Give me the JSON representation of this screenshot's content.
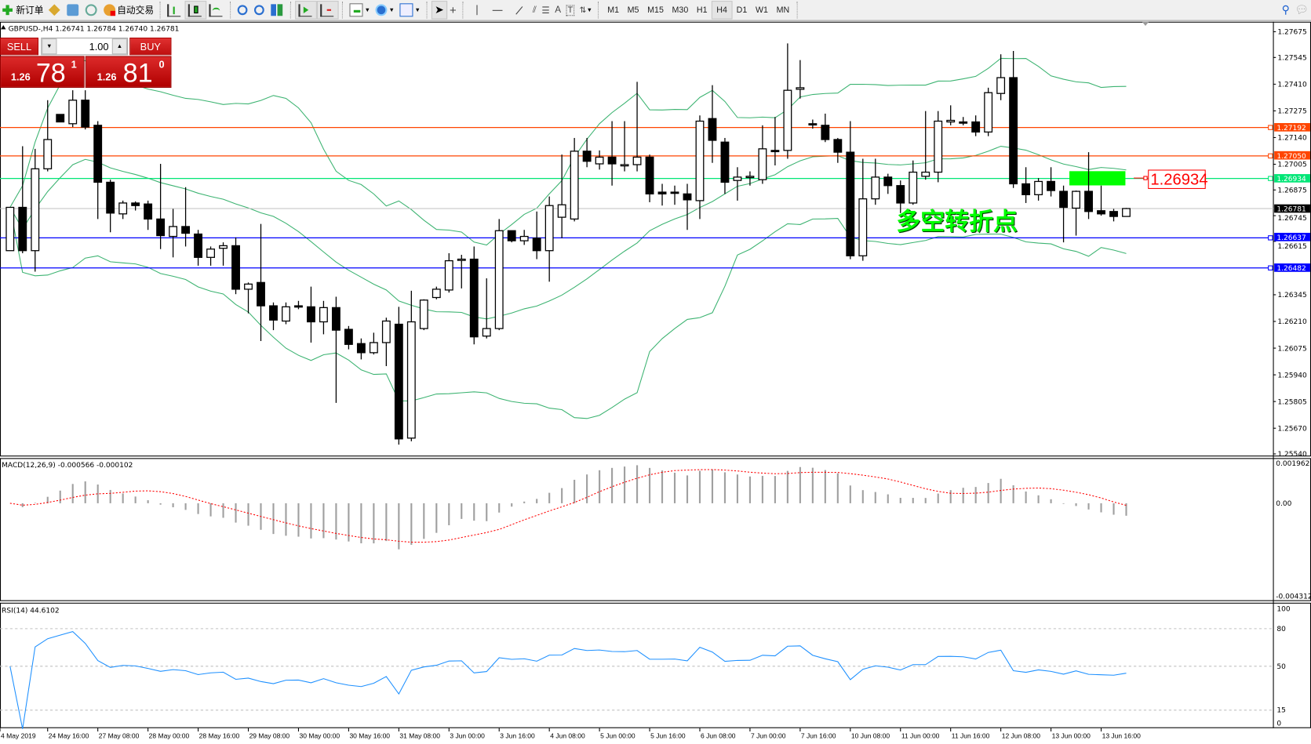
{
  "toolbar": {
    "new_order": "新订单",
    "auto_trading": "自动交易",
    "timeframes": [
      "M1",
      "M5",
      "M15",
      "M30",
      "H1",
      "H4",
      "D1",
      "W1",
      "MN"
    ],
    "active_timeframe": "H4"
  },
  "chart": {
    "header": "GBPUSD-,H4  1.26741 1.26784 1.26740 1.26781",
    "symbol": "GBPUSD-",
    "period": "H4",
    "annotation_text": "多空转折点",
    "annotation_color": "#00ff00",
    "price_label": "1.26934",
    "zone": {
      "top": 1.2697,
      "bottom": 1.26898,
      "color": "#00ff00"
    },
    "price_axis": [
      "1.27675",
      "1.27545",
      "1.27410",
      "1.27275",
      "1.27140",
      "1.27005",
      "1.26875",
      "1.26745",
      "1.26615",
      "1.26345",
      "1.26210",
      "1.26075",
      "1.25940",
      "1.25805",
      "1.25670",
      "1.25540"
    ],
    "hlines": [
      {
        "price": "1.27192",
        "color": "#ff4500"
      },
      {
        "price": "1.27050",
        "color": "#ff4500"
      },
      {
        "price": "1.26934",
        "color": "#00e676"
      },
      {
        "price": "1.26637",
        "color": "#0000ff"
      },
      {
        "price": "1.26482",
        "color": "#0000ff"
      }
    ],
    "bid_line": {
      "price": "1.26781",
      "color": "#c0c0c0"
    },
    "bollinger": {
      "period": 20,
      "deviation": 2,
      "color": "#3cb371"
    },
    "candles": [
      [
        1.26568,
        1.26787,
        1.26568,
        1.26787
      ],
      [
        1.26787,
        1.27096,
        1.26555,
        1.26568
      ],
      [
        1.26568,
        1.27083,
        1.26462,
        1.26982
      ],
      [
        1.26982,
        1.27329,
        1.26969,
        1.2713
      ],
      [
        1.27257,
        1.27257,
        1.27219,
        1.27219
      ],
      [
        1.2721,
        1.27379,
        1.27193,
        1.27329
      ],
      [
        1.27329,
        1.27379,
        1.27181,
        1.27193
      ],
      [
        1.27202,
        1.27223,
        1.26728,
        1.26914
      ],
      [
        1.26914,
        1.26927,
        1.26661,
        1.26758
      ],
      [
        1.26754,
        1.26821,
        1.26728,
        1.26809
      ],
      [
        1.26809,
        1.26817,
        1.26771,
        1.26796
      ],
      [
        1.26804,
        1.26821,
        1.26673,
        1.26728
      ],
      [
        1.26728,
        1.27007,
        1.26576,
        1.26644
      ],
      [
        1.2664,
        1.26779,
        1.26534,
        1.2669
      ],
      [
        1.2669,
        1.26889,
        1.26589,
        1.26656
      ],
      [
        1.26652,
        1.26673,
        1.26492,
        1.26534
      ],
      [
        1.26534,
        1.26589,
        1.26492,
        1.26576
      ],
      [
        1.2658,
        1.2661,
        1.26492,
        1.26593
      ],
      [
        1.26593,
        1.26635,
        1.26348,
        1.26373
      ],
      [
        1.26373,
        1.26407,
        1.26251,
        1.26399
      ],
      [
        1.26407,
        1.26703,
        1.26111,
        1.26289
      ],
      [
        1.26289,
        1.26306,
        1.26166,
        1.26217
      ],
      [
        1.26212,
        1.26306,
        1.26196,
        1.26284
      ],
      [
        1.26289,
        1.26314,
        1.26272,
        1.26287
      ],
      [
        1.26284,
        1.26386,
        1.26103,
        1.26208
      ],
      [
        1.26208,
        1.26314,
        1.26145,
        1.2628
      ],
      [
        1.2628,
        1.26335,
        1.25798,
        1.26166
      ],
      [
        1.2617,
        1.26187,
        1.26069,
        1.26094
      ],
      [
        1.26098,
        1.26124,
        1.26018,
        1.26052
      ],
      [
        1.26052,
        1.26153,
        1.26043,
        1.26103
      ],
      [
        1.26103,
        1.26229,
        1.25984,
        1.26212
      ],
      [
        1.26196,
        1.26284,
        1.25587,
        1.25616
      ],
      [
        1.2562,
        1.26365,
        1.25604,
        1.26208
      ],
      [
        1.26174,
        1.26322,
        1.26166,
        1.26318
      ],
      [
        1.26331,
        1.26386,
        1.26322,
        1.26373
      ],
      [
        1.26369,
        1.26555,
        1.26356,
        1.26517
      ],
      [
        1.26521,
        1.26547,
        1.26377,
        1.26525
      ],
      [
        1.26525,
        1.26589,
        1.26094,
        1.26132
      ],
      [
        1.26136,
        1.26428,
        1.26124,
        1.26174
      ],
      [
        1.26174,
        1.26728,
        1.26166,
        1.26669
      ],
      [
        1.26669,
        1.26669,
        1.2661,
        1.26618
      ],
      [
        1.26618,
        1.26673,
        1.26597,
        1.2664
      ],
      [
        1.26631,
        1.26766,
        1.26525,
        1.26568
      ],
      [
        1.26568,
        1.26842,
        1.26411,
        1.26796
      ],
      [
        1.26737,
        1.27054,
        1.26631,
        1.268
      ],
      [
        1.26728,
        1.27138,
        1.26716,
        1.27071
      ],
      [
        1.27071,
        1.27138,
        1.2699,
        1.2702
      ],
      [
        1.27007,
        1.27075,
        1.26978,
        1.27041
      ],
      [
        1.27041,
        1.27223,
        1.26897,
        1.27007
      ],
      [
        1.26999,
        1.27223,
        1.26969,
        1.27003
      ],
      [
        1.27003,
        1.27422,
        1.26969,
        1.27041
      ],
      [
        1.27041,
        1.27054,
        1.26813,
        1.26855
      ],
      [
        1.26864,
        1.26906,
        1.26796,
        1.26855
      ],
      [
        1.26864,
        1.26897,
        1.268,
        1.2686
      ],
      [
        1.26855,
        1.26906,
        1.26673,
        1.26825
      ],
      [
        1.26821,
        1.27252,
        1.26728,
        1.27223
      ],
      [
        1.27236,
        1.27405,
        1.27012,
        1.27126
      ],
      [
        1.27117,
        1.27138,
        1.26855,
        1.26914
      ],
      [
        1.26923,
        1.2699,
        1.26821,
        1.2694
      ],
      [
        1.2694,
        1.26969,
        1.26897,
        1.26944
      ],
      [
        1.26927,
        1.27202,
        1.26906,
        1.27083
      ],
      [
        1.27075,
        1.27244,
        1.26999,
        1.27071
      ],
      [
        1.27075,
        1.27616,
        1.27033,
        1.27379
      ],
      [
        1.27384,
        1.27532,
        1.27337,
        1.27392
      ],
      [
        1.2721,
        1.27231,
        1.27185,
        1.27206
      ],
      [
        1.27202,
        1.27261,
        1.27117,
        1.2713
      ],
      [
        1.2713,
        1.27138,
        1.27012,
        1.27066
      ],
      [
        1.27066,
        1.27223,
        1.26525,
        1.26542
      ],
      [
        1.26542,
        1.27033,
        1.26517,
        1.2683
      ],
      [
        1.2683,
        1.27033,
        1.268,
        1.2694
      ],
      [
        1.2694,
        1.26957,
        1.26855,
        1.26897
      ],
      [
        1.26897,
        1.26923,
        1.26758,
        1.26809
      ],
      [
        1.26809,
        1.27024,
        1.268,
        1.26965
      ],
      [
        1.26944,
        1.27274,
        1.26927,
        1.26965
      ],
      [
        1.26965,
        1.27274,
        1.26914,
        1.27223
      ],
      [
        1.27219,
        1.27303,
        1.27202,
        1.27227
      ],
      [
        1.27219,
        1.27244,
        1.27202,
        1.27217
      ],
      [
        1.27219,
        1.27252,
        1.27147,
        1.27168
      ],
      [
        1.27168,
        1.27392,
        1.27147,
        1.27367
      ],
      [
        1.27363,
        1.27561,
        1.27329,
        1.27443
      ],
      [
        1.27443,
        1.27578,
        1.26885,
        1.26906
      ],
      [
        1.26906,
        1.2699,
        1.26809,
        1.26851
      ],
      [
        1.26851,
        1.26935,
        1.26821,
        1.26918
      ],
      [
        1.26918,
        1.2699,
        1.26842,
        1.26872
      ],
      [
        1.26868,
        1.26897,
        1.2661,
        1.26787
      ],
      [
        1.26783,
        1.26872,
        1.26644,
        1.26868
      ],
      [
        1.26868,
        1.27066,
        1.26728,
        1.26766
      ],
      [
        1.2677,
        1.26897,
        1.26745,
        1.26754
      ],
      [
        1.26766,
        1.26779,
        1.26716,
        1.26741
      ],
      [
        1.26741,
        1.26784,
        1.2674,
        1.26781
      ]
    ],
    "time_axis": [
      "4 May 2019",
      "24 May 16:00",
      "27 May 08:00",
      "28 May 00:00",
      "28 May 16:00",
      "29 May 08:00",
      "30 May 00:00",
      "30 May 16:00",
      "31 May 08:00",
      "3 Jun 00:00",
      "3 Jun 16:00",
      "4 Jun 08:00",
      "5 Jun 00:00",
      "5 Jun 16:00",
      "6 Jun 08:00",
      "7 Jun 00:00",
      "7 Jun 16:00",
      "10 Jun 08:00",
      "11 Jun 00:00",
      "11 Jun 16:00",
      "12 Jun 08:00",
      "13 Jun 00:00",
      "13 Jun 16:00"
    ]
  },
  "macd": {
    "label": "MACD(12,26,9) -0.000566 -0.000102",
    "axis": [
      "0.001962",
      "0.00",
      "-0.004312"
    ],
    "hist_color": "#a0a0a0",
    "signal_color": "#ff0000"
  },
  "rsi": {
    "label": "RSI(14) 44.6102",
    "axis": [
      "100",
      "80",
      "50",
      "15",
      "0"
    ],
    "color": "#1e90ff"
  },
  "trade_panel": {
    "sell_label": "SELL",
    "buy_label": "BUY",
    "lot": "1.00",
    "sell_prefix": "1.26",
    "sell_big": "78",
    "sell_sup": "1",
    "buy_prefix": "1.26",
    "buy_big": "81",
    "buy_sup": "0"
  }
}
